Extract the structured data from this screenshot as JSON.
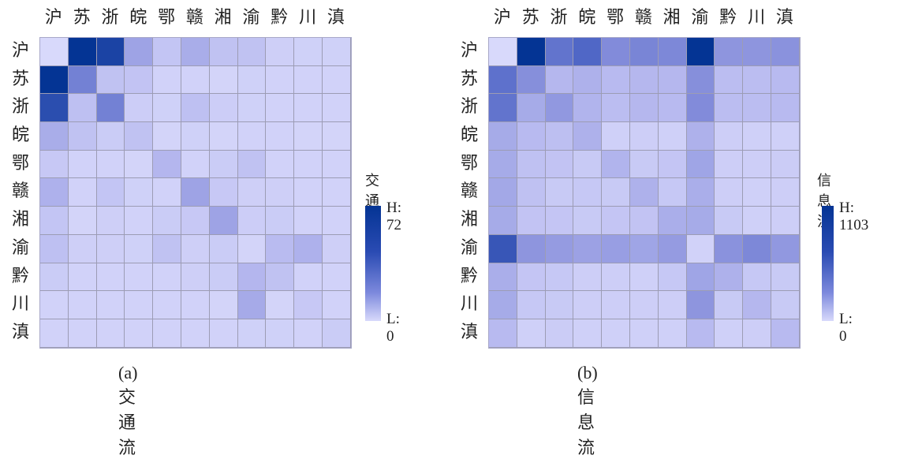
{
  "chart_data": [
    {
      "type": "heatmap",
      "title": "(a)交通流",
      "legend_title": "交通流",
      "legend_high": "H: 72",
      "legend_low": "L: 0",
      "range": [
        0,
        72
      ],
      "colors": {
        "low": "#d8d9fb",
        "high": "#043494"
      },
      "x_categories": [
        "沪",
        "苏",
        "浙",
        "皖",
        "鄂",
        "赣",
        "湘",
        "渝",
        "黔",
        "川",
        "滇"
      ],
      "y_categories": [
        "沪",
        "苏",
        "浙",
        "皖",
        "鄂",
        "赣",
        "湘",
        "渝",
        "黔",
        "川",
        "滇"
      ],
      "values": [
        [
          0,
          72,
          66,
          28,
          12,
          24,
          14,
          14,
          6,
          5,
          5
        ],
        [
          72,
          42,
          14,
          13,
          4,
          4,
          3,
          5,
          4,
          4,
          4
        ],
        [
          62,
          15,
          42,
          7,
          5,
          15,
          7,
          5,
          4,
          4,
          4
        ],
        [
          24,
          14,
          8,
          14,
          3,
          5,
          3,
          4,
          4,
          3,
          3
        ],
        [
          10,
          4,
          4,
          3,
          20,
          4,
          8,
          14,
          4,
          4,
          4
        ],
        [
          22,
          4,
          12,
          5,
          4,
          28,
          10,
          6,
          6,
          4,
          4
        ],
        [
          12,
          3,
          6,
          4,
          8,
          10,
          28,
          7,
          8,
          4,
          4
        ],
        [
          15,
          6,
          6,
          5,
          14,
          6,
          8,
          3,
          18,
          22,
          6
        ],
        [
          8,
          4,
          4,
          4,
          4,
          6,
          8,
          20,
          14,
          4,
          4
        ],
        [
          4,
          4,
          4,
          4,
          4,
          4,
          3,
          25,
          3,
          10,
          4
        ],
        [
          4,
          4,
          4,
          4,
          4,
          4,
          4,
          5,
          5,
          4,
          8
        ]
      ]
    },
    {
      "type": "heatmap",
      "title": "(b)信息流",
      "legend_title": "信息流",
      "legend_high": "H: 1103",
      "legend_low": "L: 0",
      "range": [
        0,
        1103
      ],
      "colors": {
        "low": "#d8d9fb",
        "high": "#043494"
      },
      "x_categories": [
        "沪",
        "苏",
        "浙",
        "皖",
        "鄂",
        "赣",
        "湘",
        "渝",
        "黔",
        "川",
        "滇"
      ],
      "y_categories": [
        "沪",
        "苏",
        "浙",
        "皖",
        "鄂",
        "赣",
        "湘",
        "渝",
        "黔",
        "川",
        "滇"
      ],
      "values": [
        [
          0,
          1103,
          720,
          800,
          580,
          620,
          600,
          1103,
          520,
          520,
          540
        ],
        [
          740,
          560,
          300,
          340,
          280,
          300,
          300,
          560,
          260,
          260,
          280
        ],
        [
          720,
          380,
          500,
          320,
          260,
          300,
          280,
          580,
          260,
          260,
          280
        ],
        [
          380,
          280,
          240,
          340,
          80,
          100,
          80,
          340,
          100,
          80,
          80
        ],
        [
          380,
          220,
          200,
          140,
          320,
          140,
          180,
          420,
          100,
          100,
          120
        ],
        [
          400,
          220,
          140,
          160,
          140,
          340,
          160,
          360,
          100,
          80,
          100
        ],
        [
          380,
          200,
          180,
          140,
          180,
          200,
          360,
          380,
          140,
          80,
          100
        ],
        [
          900,
          520,
          480,
          440,
          460,
          420,
          480,
          60,
          540,
          600,
          500
        ],
        [
          360,
          180,
          160,
          100,
          100,
          80,
          160,
          420,
          340,
          160,
          140
        ],
        [
          380,
          160,
          140,
          100,
          100,
          100,
          100,
          520,
          140,
          300,
          140
        ],
        [
          280,
          80,
          120,
          80,
          80,
          80,
          80,
          280,
          80,
          100,
          280
        ]
      ]
    }
  ]
}
